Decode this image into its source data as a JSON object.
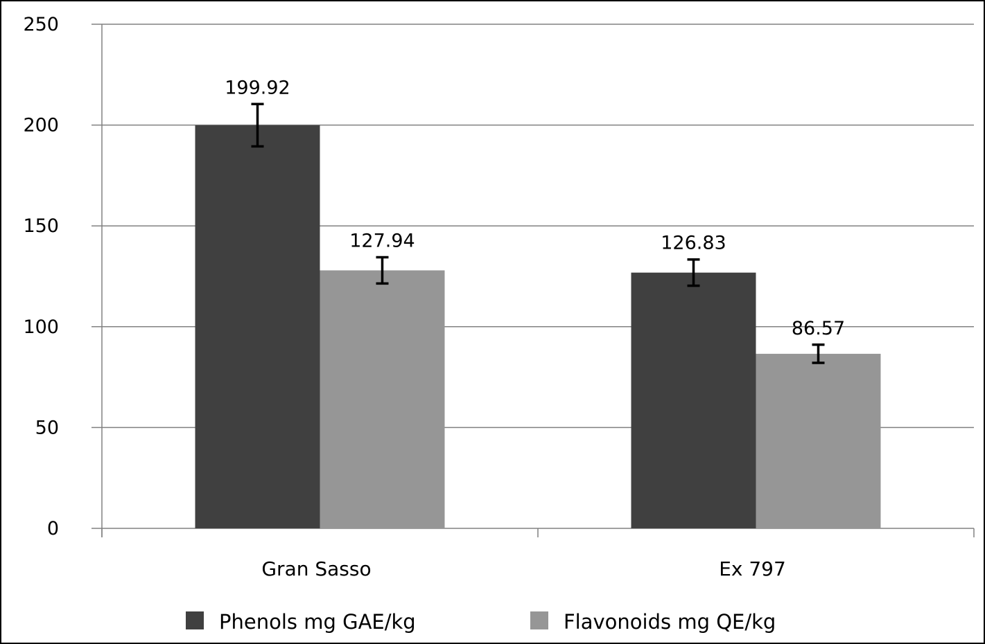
{
  "chart_data": {
    "type": "bar",
    "title": "",
    "xlabel": "",
    "ylabel": "",
    "categories": [
      "Gran Sasso",
      "Ex 797"
    ],
    "series": [
      {
        "name": "Phenols mg GAE/kg",
        "values": [
          199.92,
          126.83
        ],
        "value_labels": [
          "199.92",
          "126.83"
        ],
        "error": [
          10.5,
          6.5
        ],
        "color": "#404040"
      },
      {
        "name": "Flavonoids mg QE/kg",
        "values": [
          127.94,
          86.57
        ],
        "value_labels": [
          "127.94",
          "86.57"
        ],
        "error": [
          6.5,
          4.5
        ],
        "color": "#969696"
      }
    ],
    "ylim": [
      0,
      250
    ],
    "yticks": [
      0,
      50,
      100,
      150,
      200,
      250
    ],
    "ytick_labels": [
      "0",
      "50",
      "100",
      "150",
      "200",
      "250"
    ],
    "grid": true,
    "legend_position": "bottom"
  }
}
